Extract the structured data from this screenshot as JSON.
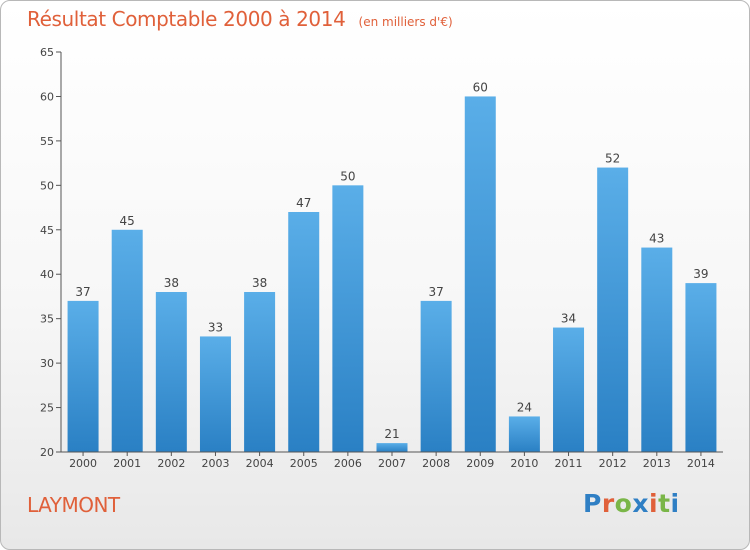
{
  "chart_data": {
    "type": "bar",
    "title": "Résultat Comptable 2000 à 2014",
    "subtitle": "(en milliers d'€)",
    "categories": [
      "2000",
      "2001",
      "2002",
      "2003",
      "2004",
      "2005",
      "2006",
      "2007",
      "2008",
      "2009",
      "2010",
      "2011",
      "2012",
      "2013",
      "2014"
    ],
    "values": [
      37,
      45,
      38,
      33,
      38,
      47,
      50,
      21,
      37,
      60,
      24,
      34,
      52,
      43,
      39
    ],
    "ylim": [
      20,
      65
    ],
    "yticks": [
      20,
      25,
      30,
      35,
      40,
      45,
      50,
      55,
      60,
      65
    ],
    "grid": false,
    "xlabel": "",
    "ylabel": "",
    "colors": {
      "bar_light": "#5aaee8",
      "bar_dark": "#2a80c4",
      "text": "#e0603a"
    }
  },
  "commune": "LAYMONT",
  "logo": {
    "text": "Proxiti",
    "colors": [
      "#2f7fc4",
      "#e0603a",
      "#7ab648",
      "#2f7fc4",
      "#e0603a",
      "#7ab648",
      "#2f7fc4"
    ]
  }
}
